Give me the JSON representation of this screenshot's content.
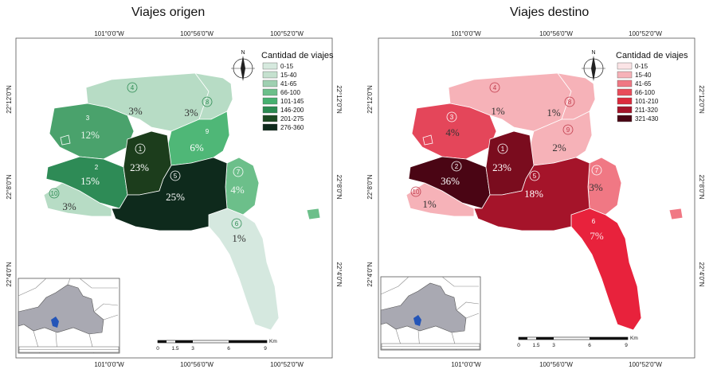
{
  "maps": [
    {
      "title": "Viajes origen",
      "legend_title": "Cantidad de viajes",
      "legend": [
        {
          "label": "0-15",
          "color": "#d6e9de"
        },
        {
          "label": "15-40",
          "color": "#c5e1cf"
        },
        {
          "label": "41-65",
          "color": "#9fd0b1"
        },
        {
          "label": "66-100",
          "color": "#6cbf8a"
        },
        {
          "label": "101-145",
          "color": "#46b070"
        },
        {
          "label": "146-200",
          "color": "#2c8b52"
        },
        {
          "label": "201-275",
          "color": "#1c4a22"
        },
        {
          "label": "276-360",
          "color": "#0e2a1c"
        }
      ],
      "zones": [
        {
          "id": "1",
          "pct": "23%",
          "color": "#1c3d1c"
        },
        {
          "id": "2",
          "pct": "15%",
          "color": "#2e8b56"
        },
        {
          "id": "3",
          "pct": "12%",
          "color": "#4aa26c"
        },
        {
          "id": "4",
          "pct": "3%",
          "color": "#b7dcc5"
        },
        {
          "id": "5",
          "pct": "25%",
          "color": "#0e2a1c"
        },
        {
          "id": "6",
          "pct": "1%",
          "color": "#d5e8df"
        },
        {
          "id": "7",
          "pct": "4%",
          "color": "#6cbf8a"
        },
        {
          "id": "8",
          "pct": "3%",
          "color": "#b7dcc5"
        },
        {
          "id": "9",
          "pct": "6%",
          "color": "#4fb777"
        },
        {
          "id": "10",
          "pct": "3%",
          "color": "#b7dcc5"
        }
      ]
    },
    {
      "title": "Viajes destino",
      "legend_title": "Cantidad de viajes",
      "legend": [
        {
          "label": "0-15",
          "color": "#fbe4e6"
        },
        {
          "label": "15-40",
          "color": "#f6b2b8"
        },
        {
          "label": "41-65",
          "color": "#f07884"
        },
        {
          "label": "66-100",
          "color": "#e94c5a"
        },
        {
          "label": "101-210",
          "color": "#dc2a3c"
        },
        {
          "label": "211-320",
          "color": "#a5142a"
        },
        {
          "label": "321-430",
          "color": "#4a0514"
        }
      ],
      "zones": [
        {
          "id": "1",
          "pct": "23%",
          "color": "#7a0c1e"
        },
        {
          "id": "2",
          "pct": "36%",
          "color": "#4a0514"
        },
        {
          "id": "3",
          "pct": "4%",
          "color": "#e4465a"
        },
        {
          "id": "4",
          "pct": "1%",
          "color": "#f6b2b8"
        },
        {
          "id": "5",
          "pct": "18%",
          "color": "#a5142a"
        },
        {
          "id": "6",
          "pct": "7%",
          "color": "#e8223c"
        },
        {
          "id": "7",
          "pct": "3%",
          "color": "#f07884"
        },
        {
          "id": "8",
          "pct": "1%",
          "color": "#f6b2b8"
        },
        {
          "id": "9",
          "pct": "2%",
          "color": "#f6b2b8"
        },
        {
          "id": "10",
          "pct": "1%",
          "color": "#f6b2b8"
        }
      ]
    }
  ],
  "coords": {
    "lon_1": "101°0'0\"W",
    "lon_2": "100°56'0\"W",
    "lon_3": "100°52'0\"W",
    "lat_1": "22°12'0\"N",
    "lat_2": "22°8'0\"N",
    "lat_3": "22°4'0\"N"
  },
  "north_label": "N",
  "scale": {
    "ticks": [
      "0",
      "1.5",
      "3",
      "6",
      "9"
    ],
    "unit": "Km"
  }
}
